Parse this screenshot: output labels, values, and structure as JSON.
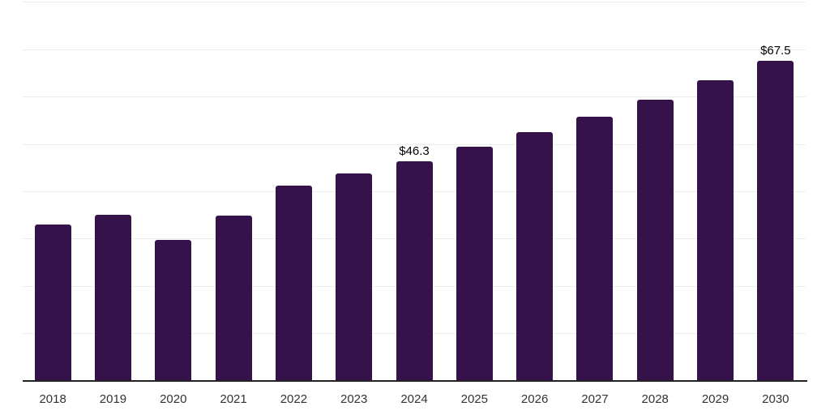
{
  "chart_data": {
    "type": "bar",
    "title": "",
    "xlabel": "",
    "ylabel": "",
    "categories": [
      "2018",
      "2019",
      "2020",
      "2021",
      "2022",
      "2023",
      "2024",
      "2025",
      "2026",
      "2027",
      "2028",
      "2029",
      "2030"
    ],
    "values": [
      32.9,
      35.1,
      29.7,
      34.8,
      41.1,
      43.8,
      46.3,
      49.4,
      52.4,
      55.8,
      59.3,
      63.4,
      67.5
    ],
    "value_labels": [
      "",
      "",
      "",
      "",
      "",
      "",
      "$46.3",
      "",
      "",
      "",
      "",
      "",
      "$67.5"
    ],
    "ylim": [
      0,
      80
    ],
    "gridline_step": 10,
    "grid": true,
    "y_tick_labels_visible": false,
    "legend_position": "none",
    "colors": {
      "bar": "#36124B",
      "grid": "#ededed",
      "axis": "#222222",
      "tick_label": "#333333",
      "value_label": "#000000",
      "background": "#ffffff"
    }
  }
}
